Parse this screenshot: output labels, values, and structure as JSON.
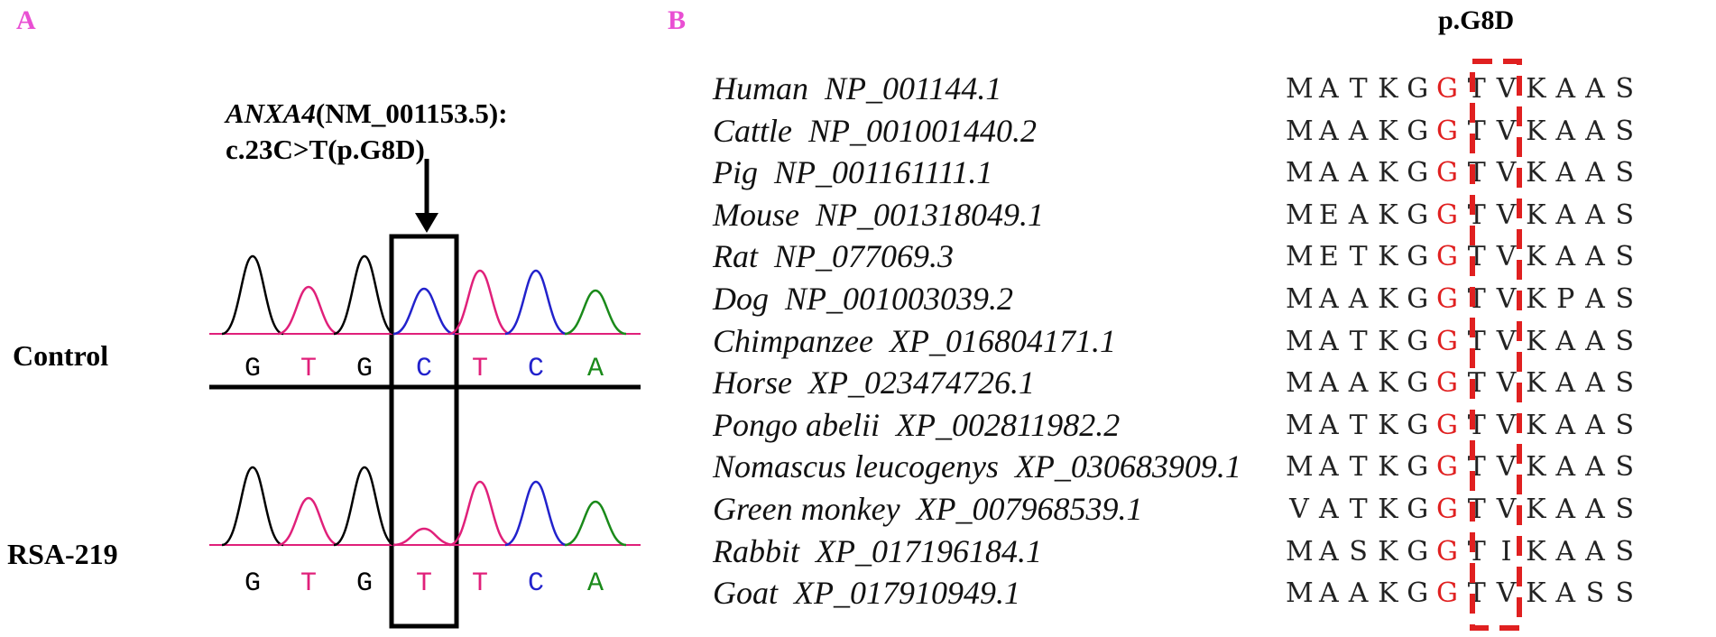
{
  "panel_a": {
    "label": "A",
    "gene_italic": "ANXA4",
    "gene_rest_line1": "(NM_001153.5):",
    "gene_line2": "c.23C>T(p.G8D)",
    "rows": [
      {
        "name": "Control",
        "bases": [
          "G",
          "T",
          "G",
          "C",
          "T",
          "C",
          "A"
        ]
      },
      {
        "name": "RSA-219",
        "bases": [
          "G",
          "T",
          "G",
          "T",
          "T",
          "C",
          "A"
        ]
      }
    ],
    "colors": {
      "G": "#000000",
      "T": "#e0207a",
      "C": "#2222cc",
      "A": "#1a8a1a"
    }
  },
  "panel_b": {
    "label": "B",
    "mutation_title": "p.G8D",
    "highlight_column": 5,
    "highlight_color": "#e02020",
    "alignments": [
      {
        "species": "Human",
        "accession": "NP_001144.1",
        "seq": [
          "M",
          "A",
          "T",
          "K",
          "G",
          "G",
          "T",
          "V",
          "K",
          "A",
          "A",
          "S"
        ]
      },
      {
        "species": "Cattle",
        "accession": "NP_001001440.2",
        "seq": [
          "M",
          "A",
          "A",
          "K",
          "G",
          "G",
          "T",
          "V",
          "K",
          "A",
          "A",
          "S"
        ]
      },
      {
        "species": "Pig",
        "accession": "NP_001161111.1",
        "seq": [
          "M",
          "A",
          "A",
          "K",
          "G",
          "G",
          "T",
          "V",
          "K",
          "A",
          "A",
          "S"
        ]
      },
      {
        "species": "Mouse",
        "accession": "NP_001318049.1",
        "seq": [
          "M",
          "E",
          "A",
          "K",
          "G",
          "G",
          "T",
          "V",
          "K",
          "A",
          "A",
          "S"
        ]
      },
      {
        "species": "Rat",
        "accession": "NP_077069.3",
        "seq": [
          "M",
          "E",
          "T",
          "K",
          "G",
          "G",
          "T",
          "V",
          "K",
          "A",
          "A",
          "S"
        ]
      },
      {
        "species": "Dog",
        "accession": "NP_001003039.2",
        "seq": [
          "M",
          "A",
          "A",
          "K",
          "G",
          "G",
          "T",
          "V",
          "K",
          "P",
          "A",
          "S"
        ]
      },
      {
        "species": "Chimpanzee",
        "accession": "XP_016804171.1",
        "seq": [
          "M",
          "A",
          "T",
          "K",
          "G",
          "G",
          "T",
          "V",
          "K",
          "A",
          "A",
          "S"
        ]
      },
      {
        "species": "Horse",
        "accession": "XP_023474726.1",
        "seq": [
          "M",
          "A",
          "A",
          "K",
          "G",
          "G",
          "T",
          "V",
          "K",
          "A",
          "A",
          "S"
        ]
      },
      {
        "species": "Pongo abelii",
        "accession": "XP_002811982.2",
        "seq": [
          "M",
          "A",
          "T",
          "K",
          "G",
          "G",
          "T",
          "V",
          "K",
          "A",
          "A",
          "S"
        ]
      },
      {
        "species": "Nomascus leucogenys",
        "accession": "XP_030683909.1",
        "seq": [
          "M",
          "A",
          "T",
          "K",
          "G",
          "G",
          "T",
          "V",
          "K",
          "A",
          "A",
          "S"
        ]
      },
      {
        "species": "Green monkey",
        "accession": "XP_007968539.1",
        "seq": [
          "V",
          "A",
          "T",
          "K",
          "G",
          "G",
          "T",
          "V",
          "K",
          "A",
          "A",
          "S"
        ]
      },
      {
        "species": "Rabbit",
        "accession": "XP_017196184.1",
        "seq": [
          "M",
          "A",
          "S",
          "K",
          "G",
          "G",
          "T",
          "I",
          "K",
          "A",
          "A",
          "S"
        ]
      },
      {
        "species": "Goat",
        "accession": "XP_017910949.1",
        "seq": [
          "M",
          "A",
          "A",
          "K",
          "G",
          "G",
          "T",
          "V",
          "K",
          "A",
          "S",
          "S"
        ]
      }
    ]
  }
}
